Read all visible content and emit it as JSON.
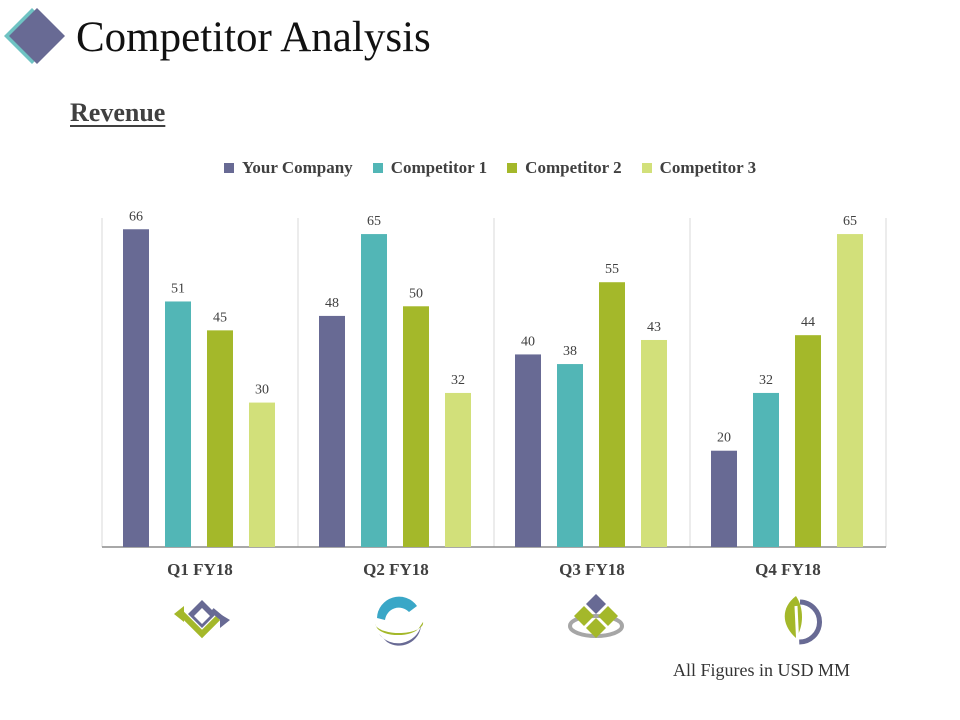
{
  "page": {
    "title": "Competitor Analysis",
    "section": "Revenue",
    "footnote": "All Figures in USD MM"
  },
  "colors": {
    "your_company": "#686a94",
    "competitor_1": "#52b6b6",
    "competitor_2": "#a4b82a",
    "competitor_3": "#d2e07a",
    "axis": "#8c8c8c",
    "divider": "#d9d9d9"
  },
  "icons": [
    "arrows-exchange-icon",
    "swirl-globe-icon",
    "diamond-cluster-icon",
    "leaf-circle-icon"
  ],
  "chart_data": {
    "type": "bar",
    "title": "Revenue",
    "categories": [
      "Q1 FY18",
      "Q2 FY18",
      "Q3 FY18",
      "Q4 FY18"
    ],
    "series": [
      {
        "name": "Your Company",
        "values": [
          66,
          48,
          40,
          20
        ]
      },
      {
        "name": "Competitor 1",
        "values": [
          51,
          65,
          38,
          32
        ]
      },
      {
        "name": "Competitor 2",
        "values": [
          45,
          50,
          55,
          44
        ]
      },
      {
        "name": "Competitor 3",
        "values": [
          30,
          32,
          43,
          65
        ]
      }
    ],
    "xlabel": "",
    "ylabel": "",
    "ylim": [
      0,
      70
    ],
    "grid": false,
    "legend": "top",
    "data_labels": true
  }
}
